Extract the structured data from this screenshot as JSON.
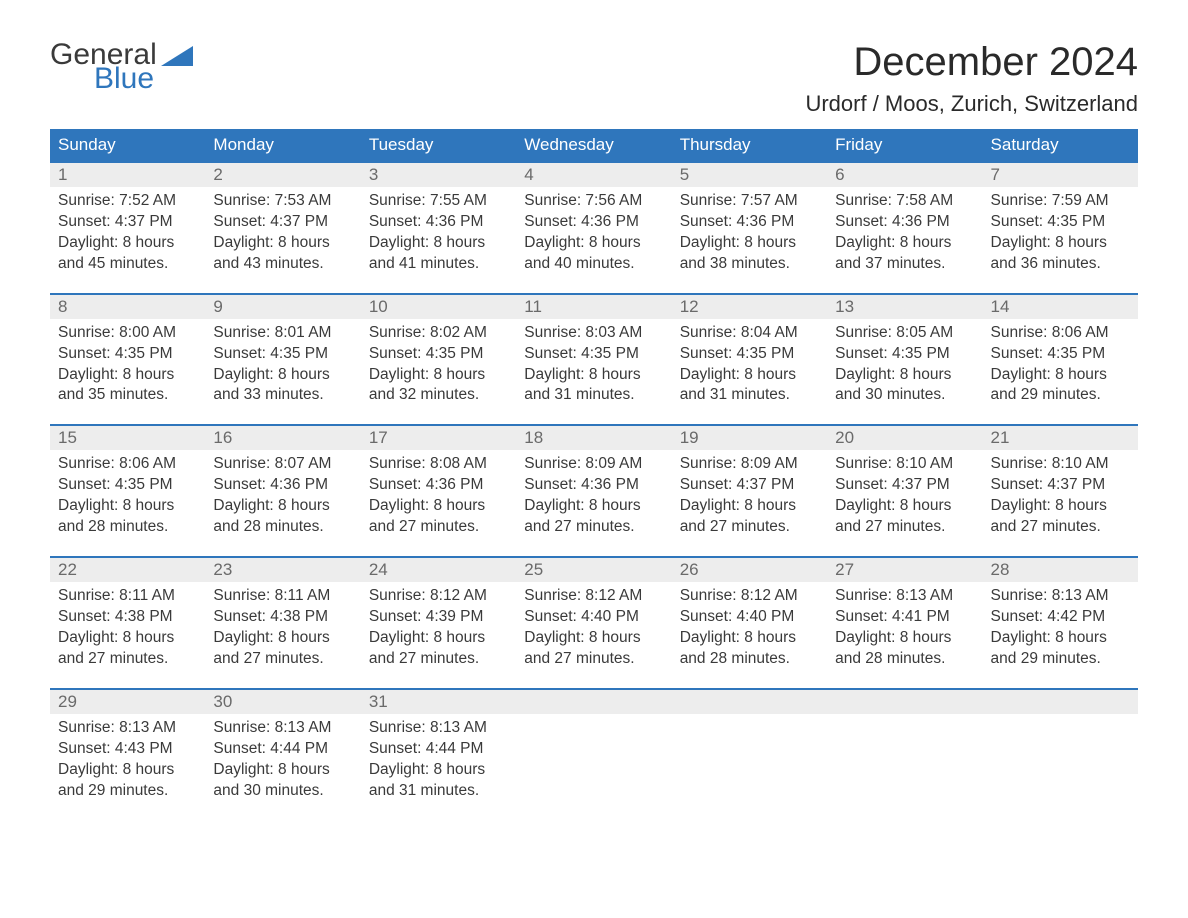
{
  "logo": {
    "line1": "General",
    "line2": "Blue"
  },
  "title": "December 2024",
  "location": "Urdorf / Moos, Zurich, Switzerland",
  "colors": {
    "brand_blue": "#2f76bc",
    "header_text": "#ffffff",
    "daynum_bg": "#ededed",
    "daynum_text": "#6a6a6a",
    "body_text": "#3a3a3a",
    "page_bg": "#ffffff"
  },
  "font": {
    "family": "Arial",
    "title_size_pt": 30,
    "location_size_pt": 17,
    "header_size_pt": 13,
    "body_size_pt": 12
  },
  "day_names": [
    "Sunday",
    "Monday",
    "Tuesday",
    "Wednesday",
    "Thursday",
    "Friday",
    "Saturday"
  ],
  "labels": {
    "sunrise": "Sunrise:",
    "sunset": "Sunset:",
    "daylight": "Daylight:"
  },
  "weeks": [
    [
      {
        "day": "1",
        "sunrise": "7:52 AM",
        "sunset": "4:37 PM",
        "daylight1": "8 hours",
        "daylight2": "and 45 minutes."
      },
      {
        "day": "2",
        "sunrise": "7:53 AM",
        "sunset": "4:37 PM",
        "daylight1": "8 hours",
        "daylight2": "and 43 minutes."
      },
      {
        "day": "3",
        "sunrise": "7:55 AM",
        "sunset": "4:36 PM",
        "daylight1": "8 hours",
        "daylight2": "and 41 minutes."
      },
      {
        "day": "4",
        "sunrise": "7:56 AM",
        "sunset": "4:36 PM",
        "daylight1": "8 hours",
        "daylight2": "and 40 minutes."
      },
      {
        "day": "5",
        "sunrise": "7:57 AM",
        "sunset": "4:36 PM",
        "daylight1": "8 hours",
        "daylight2": "and 38 minutes."
      },
      {
        "day": "6",
        "sunrise": "7:58 AM",
        "sunset": "4:36 PM",
        "daylight1": "8 hours",
        "daylight2": "and 37 minutes."
      },
      {
        "day": "7",
        "sunrise": "7:59 AM",
        "sunset": "4:35 PM",
        "daylight1": "8 hours",
        "daylight2": "and 36 minutes."
      }
    ],
    [
      {
        "day": "8",
        "sunrise": "8:00 AM",
        "sunset": "4:35 PM",
        "daylight1": "8 hours",
        "daylight2": "and 35 minutes."
      },
      {
        "day": "9",
        "sunrise": "8:01 AM",
        "sunset": "4:35 PM",
        "daylight1": "8 hours",
        "daylight2": "and 33 minutes."
      },
      {
        "day": "10",
        "sunrise": "8:02 AM",
        "sunset": "4:35 PM",
        "daylight1": "8 hours",
        "daylight2": "and 32 minutes."
      },
      {
        "day": "11",
        "sunrise": "8:03 AM",
        "sunset": "4:35 PM",
        "daylight1": "8 hours",
        "daylight2": "and 31 minutes."
      },
      {
        "day": "12",
        "sunrise": "8:04 AM",
        "sunset": "4:35 PM",
        "daylight1": "8 hours",
        "daylight2": "and 31 minutes."
      },
      {
        "day": "13",
        "sunrise": "8:05 AM",
        "sunset": "4:35 PM",
        "daylight1": "8 hours",
        "daylight2": "and 30 minutes."
      },
      {
        "day": "14",
        "sunrise": "8:06 AM",
        "sunset": "4:35 PM",
        "daylight1": "8 hours",
        "daylight2": "and 29 minutes."
      }
    ],
    [
      {
        "day": "15",
        "sunrise": "8:06 AM",
        "sunset": "4:35 PM",
        "daylight1": "8 hours",
        "daylight2": "and 28 minutes."
      },
      {
        "day": "16",
        "sunrise": "8:07 AM",
        "sunset": "4:36 PM",
        "daylight1": "8 hours",
        "daylight2": "and 28 minutes."
      },
      {
        "day": "17",
        "sunrise": "8:08 AM",
        "sunset": "4:36 PM",
        "daylight1": "8 hours",
        "daylight2": "and 27 minutes."
      },
      {
        "day": "18",
        "sunrise": "8:09 AM",
        "sunset": "4:36 PM",
        "daylight1": "8 hours",
        "daylight2": "and 27 minutes."
      },
      {
        "day": "19",
        "sunrise": "8:09 AM",
        "sunset": "4:37 PM",
        "daylight1": "8 hours",
        "daylight2": "and 27 minutes."
      },
      {
        "day": "20",
        "sunrise": "8:10 AM",
        "sunset": "4:37 PM",
        "daylight1": "8 hours",
        "daylight2": "and 27 minutes."
      },
      {
        "day": "21",
        "sunrise": "8:10 AM",
        "sunset": "4:37 PM",
        "daylight1": "8 hours",
        "daylight2": "and 27 minutes."
      }
    ],
    [
      {
        "day": "22",
        "sunrise": "8:11 AM",
        "sunset": "4:38 PM",
        "daylight1": "8 hours",
        "daylight2": "and 27 minutes."
      },
      {
        "day": "23",
        "sunrise": "8:11 AM",
        "sunset": "4:38 PM",
        "daylight1": "8 hours",
        "daylight2": "and 27 minutes."
      },
      {
        "day": "24",
        "sunrise": "8:12 AM",
        "sunset": "4:39 PM",
        "daylight1": "8 hours",
        "daylight2": "and 27 minutes."
      },
      {
        "day": "25",
        "sunrise": "8:12 AM",
        "sunset": "4:40 PM",
        "daylight1": "8 hours",
        "daylight2": "and 27 minutes."
      },
      {
        "day": "26",
        "sunrise": "8:12 AM",
        "sunset": "4:40 PM",
        "daylight1": "8 hours",
        "daylight2": "and 28 minutes."
      },
      {
        "day": "27",
        "sunrise": "8:13 AM",
        "sunset": "4:41 PM",
        "daylight1": "8 hours",
        "daylight2": "and 28 minutes."
      },
      {
        "day": "28",
        "sunrise": "8:13 AM",
        "sunset": "4:42 PM",
        "daylight1": "8 hours",
        "daylight2": "and 29 minutes."
      }
    ],
    [
      {
        "day": "29",
        "sunrise": "8:13 AM",
        "sunset": "4:43 PM",
        "daylight1": "8 hours",
        "daylight2": "and 29 minutes."
      },
      {
        "day": "30",
        "sunrise": "8:13 AM",
        "sunset": "4:44 PM",
        "daylight1": "8 hours",
        "daylight2": "and 30 minutes."
      },
      {
        "day": "31",
        "sunrise": "8:13 AM",
        "sunset": "4:44 PM",
        "daylight1": "8 hours",
        "daylight2": "and 31 minutes."
      },
      null,
      null,
      null,
      null
    ]
  ]
}
